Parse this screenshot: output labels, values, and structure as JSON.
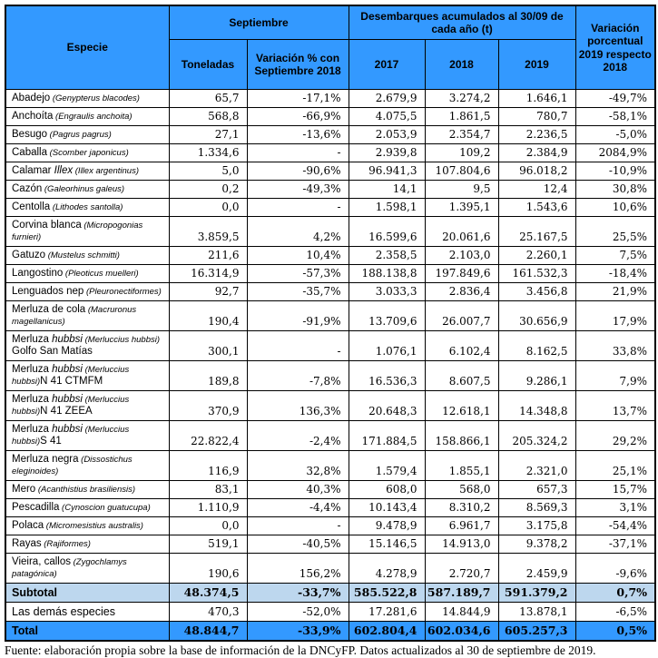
{
  "colors": {
    "header_blue": "#3399FF",
    "subtotal_blue": "#BDD7EE",
    "total_blue": "#3399FF",
    "border": "#000000"
  },
  "table": {
    "header": {
      "especie": "Especie",
      "septiembre": "Septiembre",
      "toneladas": "Toneladas",
      "variacion_sep": "Variación % con Septiembre 2018",
      "desembarques": "Desembarques acumulados al 30/09 de cada año (t)",
      "y2017": "2017",
      "y2018": "2018",
      "y2019": "2019",
      "variacion_anual": "Variación porcentual 2019 respecto 2018"
    },
    "rows": [
      {
        "n1": "Abadejo",
        "n2": "",
        "sci": " (Genypterus blacodes)",
        "n3": "",
        "ton": "65,7",
        "var_sep": "-17,1%",
        "y2017": "2.679,9",
        "y2018": "3.274,2",
        "y2019": "1.646,1",
        "var": "-49,7%"
      },
      {
        "n1": "Anchoíta",
        "n2": "",
        "sci": " (Engraulis anchoita)",
        "n3": "",
        "ton": "568,8",
        "var_sep": "-66,9%",
        "y2017": "4.075,5",
        "y2018": "1.861,5",
        "y2019": "780,7",
        "var": "-58,1%"
      },
      {
        "n1": "Besugo",
        "n2": "",
        "sci": " (Pagrus pagrus)",
        "n3": "",
        "ton": "27,1",
        "var_sep": "-13,6%",
        "y2017": "2.053,9",
        "y2018": "2.354,7",
        "y2019": "2.236,5",
        "var": "-5,0%"
      },
      {
        "n1": "Caballa",
        "n2": "",
        "sci": " (Scomber japonicus)",
        "n3": "",
        "ton": "1.334,6",
        "var_sep": "-",
        "y2017": "2.939,8",
        "y2018": "109,2",
        "y2019": "2.384,9",
        "var": "2084,9%"
      },
      {
        "n1": "Calamar",
        "n2": " Illex",
        "sci": " (Illex argentinus)",
        "n3": "",
        "ton": "5,0",
        "var_sep": "-90,6%",
        "y2017": "96.941,3",
        "y2018": "107.804,6",
        "y2019": "96.018,2",
        "var": "-10,9%"
      },
      {
        "n1": "Cazón",
        "n2": "",
        "sci": " (Galeorhinus galeus)",
        "n3": "",
        "ton": "0,2",
        "var_sep": "-49,3%",
        "y2017": "14,1",
        "y2018": "9,5",
        "y2019": "12,4",
        "var": "30,8%"
      },
      {
        "n1": "Centolla",
        "n2": "",
        "sci": " (Lithodes santolla)",
        "n3": "",
        "ton": "0,0",
        "var_sep": "-",
        "y2017": "1.598,1",
        "y2018": "1.395,1",
        "y2019": "1.543,6",
        "var": "10,6%"
      },
      {
        "n1": "Corvina blanca",
        "n2": "",
        "sci": " (Micropogonias furnieri)",
        "n3": "",
        "ton": "3.859,5",
        "var_sep": "4,2%",
        "y2017": "16.599,6",
        "y2018": "20.061,6",
        "y2019": "25.167,5",
        "var": "25,5%"
      },
      {
        "n1": "Gatuzo",
        "n2": "",
        "sci": " (Mustelus schmitti)",
        "n3": "",
        "ton": "211,6",
        "var_sep": "10,4%",
        "y2017": "2.358,5",
        "y2018": "2.103,0",
        "y2019": "2.260,1",
        "var": "7,5%"
      },
      {
        "n1": "Langostino",
        "n2": "",
        "sci": " (Pleoticus muelleri)",
        "n3": "",
        "ton": "16.314,9",
        "var_sep": "-57,3%",
        "y2017": "188.138,8",
        "y2018": "197.849,6",
        "y2019": "161.532,3",
        "var": "-18,4%"
      },
      {
        "n1": "Lenguados nep",
        "n2": "",
        "sci": " (Pleuronectiformes)",
        "n3": "",
        "ton": "92,7",
        "var_sep": "-35,7%",
        "y2017": "3.033,3",
        "y2018": "2.836,4",
        "y2019": "3.456,8",
        "var": "21,9%"
      },
      {
        "n1": "Merluza de cola",
        "n2": "",
        "sci": " (Macruronus magellanicus)",
        "n3": "",
        "ton": "190,4",
        "var_sep": "-91,9%",
        "y2017": "13.709,6",
        "y2018": "26.007,7",
        "y2019": "30.656,9",
        "var": "17,9%"
      },
      {
        "n1": "Merluza",
        "n2": " hubbsi",
        "sci": " (Merluccius hubbsi)",
        "n3": " Golfo San Matías",
        "ton": "300,1",
        "var_sep": "-",
        "y2017": "1.076,1",
        "y2018": "6.102,4",
        "y2019": "8.162,5",
        "var": "33,8%"
      },
      {
        "n1": "Merluza",
        "n2": " hubbsi",
        "sci": " (Merluccius hubbsi)",
        "n3": "N 41 CTMFM",
        "ton": "189,8",
        "var_sep": "-7,8%",
        "y2017": "16.536,3",
        "y2018": "8.607,5",
        "y2019": "9.286,1",
        "var": "7,9%"
      },
      {
        "n1": "Merluza",
        "n2": " hubbsi",
        "sci": " (Merluccius hubbsi)",
        "n3": "N 41 ZEEA",
        "ton": "370,9",
        "var_sep": "136,3%",
        "y2017": "20.648,3",
        "y2018": "12.618,1",
        "y2019": "14.348,8",
        "var": "13,7%"
      },
      {
        "n1": "Merluza",
        "n2": " hubbsi",
        "sci": " (Merluccius hubbsi)",
        "n3": "S 41",
        "ton": "22.822,4",
        "var_sep": "-2,4%",
        "y2017": "171.884,5",
        "y2018": "158.866,1",
        "y2019": "205.324,2",
        "var": "29,2%"
      },
      {
        "n1": "Merluza negra",
        "n2": "",
        "sci": " (Dissostichus eleginoides)",
        "n3": "",
        "ton": "116,9",
        "var_sep": "32,8%",
        "y2017": "1.579,4",
        "y2018": "1.855,1",
        "y2019": "2.321,0",
        "var": "25,1%"
      },
      {
        "n1": "Mero",
        "n2": "",
        "sci": " (Acanthistius brasiliensis)",
        "n3": "",
        "ton": "83,1",
        "var_sep": "40,3%",
        "y2017": "608,0",
        "y2018": "568,0",
        "y2019": "657,3",
        "var": "15,7%"
      },
      {
        "n1": "Pescadilla",
        "n2": "",
        "sci": " (Cynoscion guatucupa)",
        "n3": "",
        "ton": "1.110,9",
        "var_sep": "-4,4%",
        "y2017": "10.143,4",
        "y2018": "8.310,2",
        "y2019": "8.569,3",
        "var": "3,1%"
      },
      {
        "n1": "Polaca",
        "n2": "",
        "sci": " (Micromesistius australis)",
        "n3": "",
        "ton": "0,0",
        "var_sep": "-",
        "y2017": "9.478,9",
        "y2018": "6.961,7",
        "y2019": "3.175,8",
        "var": "-54,4%"
      },
      {
        "n1": "Rayas",
        "n2": "",
        "sci": " (Rajiformes)",
        "n3": "",
        "ton": "519,1",
        "var_sep": "-40,5%",
        "y2017": "15.146,5",
        "y2018": "14.913,0",
        "y2019": "9.378,2",
        "var": "-37,1%"
      },
      {
        "n1": "Vieira, callos",
        "n2": "",
        "sci": " (Zygochlamys patagónica)",
        "n3": "",
        "ton": "190,6",
        "var_sep": "156,2%",
        "y2017": "4.278,9",
        "y2018": "2.720,7",
        "y2019": "2.459,9",
        "var": "-9,6%"
      }
    ],
    "subtotal": {
      "label": "Subtotal",
      "ton": "48.374,5",
      "var_sep": "-33,7%",
      "y2017": "585.522,8",
      "y2018": "587.189,7",
      "y2019": "591.379,2",
      "var": "0,7%"
    },
    "other_species": {
      "label": "Las demás especies",
      "ton": "470,3",
      "var_sep": "-52,0%",
      "y2017": "17.281,6",
      "y2018": "14.844,9",
      "y2019": "13.878,1",
      "var": "-6,5%"
    },
    "total": {
      "label": "Total",
      "ton": "48.844,7",
      "var_sep": "-33,9%",
      "y2017": "602.804,4",
      "y2018": "602.034,6",
      "y2019": "605.257,3",
      "var": "0,5%"
    }
  },
  "footer": {
    "source_note": "Fuente: elaboración propia sobre la base de información de la DNCyFP. Datos actualizados al 30 de septiembre de 2019."
  }
}
